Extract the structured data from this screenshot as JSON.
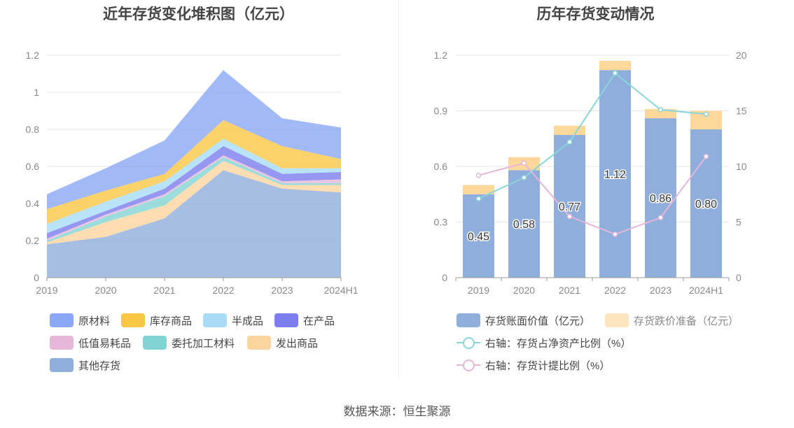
{
  "left": {
    "title": "近年存货变化堆积图（亿元）",
    "legend": [
      {
        "label": "原材料",
        "color": "#8ba7f5"
      },
      {
        "label": "库存商品",
        "color": "#f9c743"
      },
      {
        "label": "半成品",
        "color": "#a8dcf6"
      },
      {
        "label": "在产品",
        "color": "#7c7dee"
      },
      {
        "label": "低值易耗品",
        "color": "#e7b7da"
      },
      {
        "label": "委托加工材料",
        "color": "#82d3d3"
      },
      {
        "label": "发出商品",
        "color": "#fcd59e"
      },
      {
        "label": "其他存货",
        "color": "#8faedb"
      }
    ]
  },
  "right": {
    "title": "历年存货变动情况",
    "legend": [
      {
        "label": "存货账面价值（亿元）",
        "color": "#8faedb",
        "kind": "bar"
      },
      {
        "label": "存货跌价准备（亿元）",
        "color": "#fde6bf",
        "kind": "bar",
        "faded": true
      },
      {
        "label": "右轴：存货占净资产比例（%）",
        "color": "#8ad5d9",
        "kind": "line"
      },
      {
        "label": "右轴：存货计提比例（%）",
        "color": "#e6b6d9",
        "kind": "line"
      }
    ]
  },
  "source": "数据来源：恒生聚源",
  "chart_data": [
    {
      "type": "area",
      "stacked": true,
      "title": "近年存货变化堆积图（亿元）",
      "categories": [
        "2019",
        "2020",
        "2021",
        "2022",
        "2023",
        "2024H1"
      ],
      "ylim": [
        0,
        1.2
      ],
      "yticks": [
        "0",
        "0.2",
        "0.4",
        "0.6",
        "0.8",
        "1",
        "1.2"
      ],
      "grid": true,
      "legend_position": "bottom",
      "series": [
        {
          "name": "其他存货",
          "color": "#8faedb",
          "values": [
            0.18,
            0.22,
            0.32,
            0.58,
            0.48,
            0.46
          ]
        },
        {
          "name": "发出商品",
          "color": "#fcd59e",
          "values": [
            0.01,
            0.08,
            0.07,
            0.05,
            0.02,
            0.04
          ]
        },
        {
          "name": "委托加工材料",
          "color": "#82d3d3",
          "values": [
            0.01,
            0.03,
            0.05,
            0.02,
            0.01,
            0.01
          ]
        },
        {
          "name": "低值易耗品",
          "color": "#e7b7da",
          "values": [
            0.01,
            0.01,
            0.01,
            0.01,
            0.01,
            0.02
          ]
        },
        {
          "name": "在产品",
          "color": "#7c7dee",
          "values": [
            0.03,
            0.02,
            0.03,
            0.05,
            0.04,
            0.04
          ]
        },
        {
          "name": "半成品",
          "color": "#a8dcf6",
          "values": [
            0.05,
            0.05,
            0.04,
            0.04,
            0.03,
            0.02
          ]
        },
        {
          "name": "库存商品",
          "color": "#f9c743",
          "values": [
            0.08,
            0.06,
            0.04,
            0.1,
            0.12,
            0.05
          ]
        },
        {
          "name": "原材料",
          "color": "#8ba7f5",
          "values": [
            0.08,
            0.12,
            0.18,
            0.27,
            0.15,
            0.17
          ]
        }
      ]
    },
    {
      "type": "bar",
      "stacked": true,
      "title": "历年存货变动情况",
      "categories": [
        "2019",
        "2020",
        "2021",
        "2022",
        "2023",
        "2024H1"
      ],
      "ylim": [
        0,
        1.2
      ],
      "yticks": [
        "0",
        "0.3",
        "0.6",
        "0.9",
        "1.2"
      ],
      "y2lim": [
        0,
        20
      ],
      "y2ticks": [
        "0",
        "5",
        "10",
        "15",
        "20"
      ],
      "grid": true,
      "legend_position": "bottom",
      "series": [
        {
          "name": "存货账面价值（亿元）",
          "color": "#8faedb",
          "axis": "left",
          "kind": "bar",
          "values": [
            0.45,
            0.58,
            0.77,
            1.12,
            0.86,
            0.8
          ],
          "labels": [
            "0.45",
            "0.58",
            "0.77",
            "1.12",
            "0.86",
            "0.80"
          ]
        },
        {
          "name": "存货跌价准备（亿元）",
          "color": "#fdd89a",
          "axis": "left",
          "kind": "bar",
          "values": [
            0.05,
            0.07,
            0.05,
            0.05,
            0.05,
            0.1
          ]
        },
        {
          "name": "右轴：存货占净资产比例（%）",
          "color": "#8ad5d9",
          "axis": "right",
          "kind": "line",
          "values": [
            7.1,
            9.0,
            12.2,
            18.4,
            15.1,
            14.7
          ]
        },
        {
          "name": "右轴：存货计提比例（%）",
          "color": "#e6b6d9",
          "axis": "right",
          "kind": "line",
          "values": [
            9.2,
            10.3,
            5.5,
            3.9,
            5.4,
            10.9
          ]
        }
      ]
    }
  ]
}
